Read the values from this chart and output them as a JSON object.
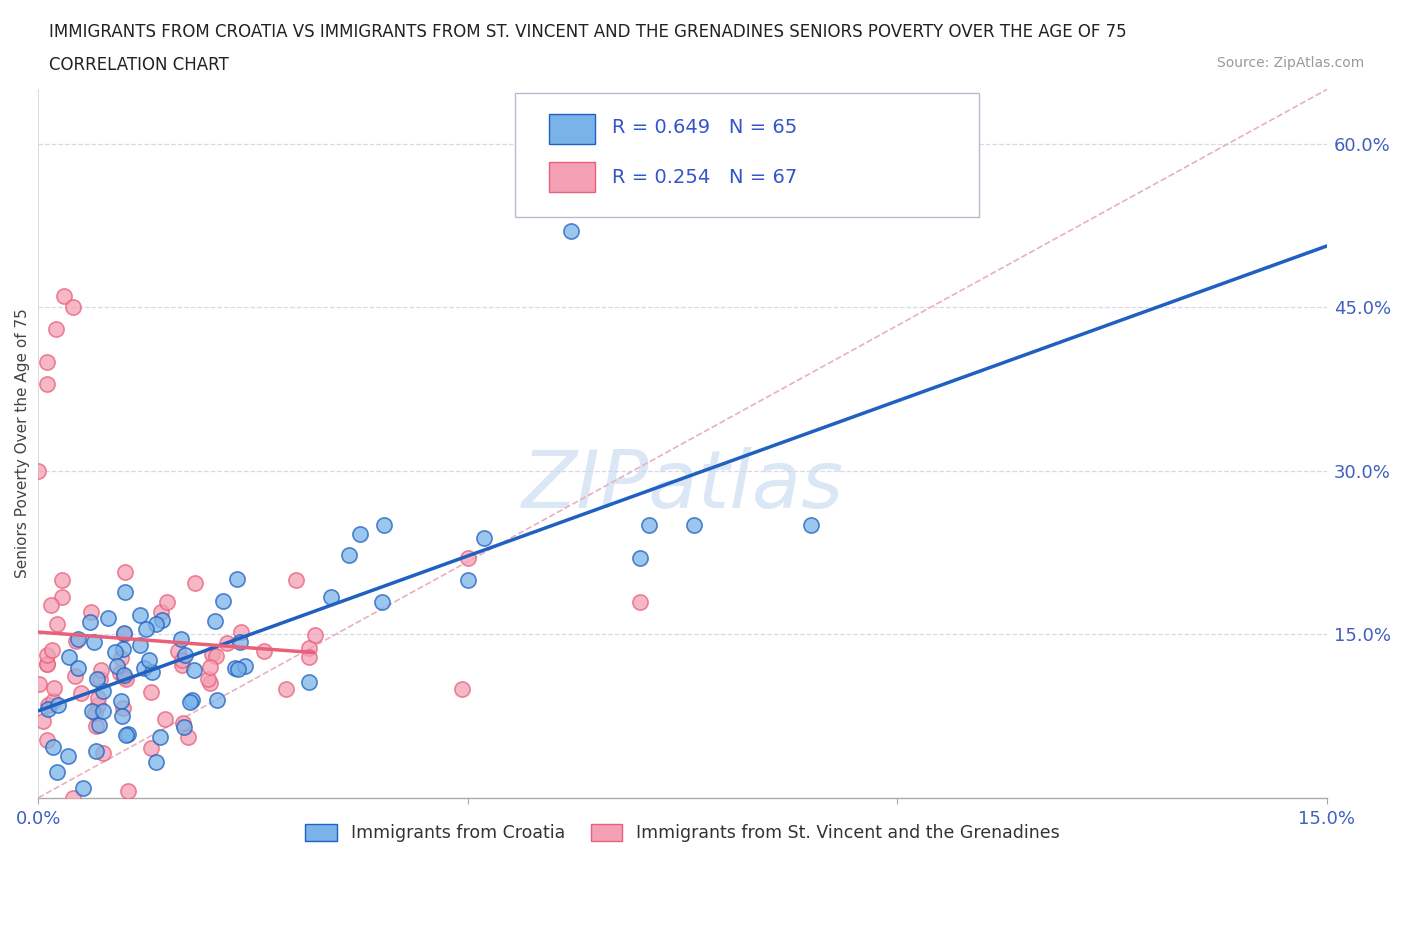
{
  "title_line1": "IMMIGRANTS FROM CROATIA VS IMMIGRANTS FROM ST. VINCENT AND THE GRENADINES SENIORS POVERTY OVER THE AGE OF 75",
  "title_line2": "CORRELATION CHART",
  "source_text": "Source: ZipAtlas.com",
  "ylabel": "Seniors Poverty Over the Age of 75",
  "x_min": 0.0,
  "x_max": 0.15,
  "y_min": 0.0,
  "y_max": 0.65,
  "croatia_color": "#7ab3e8",
  "svg_color": "#f4a0b5",
  "croatia_line_color": "#2060c0",
  "svg_line_color": "#e8607a",
  "dashed_line_color": "#d0a0b0",
  "grid_color": "#d8d8e8",
  "croatia_R": 0.649,
  "croatia_N": 65,
  "svg_R": 0.254,
  "svg_N": 67,
  "watermark": "ZIPatlas",
  "legend_label_croatia": "Immigrants from Croatia",
  "legend_label_svg": "Immigrants from St. Vincent and the Grenadines"
}
